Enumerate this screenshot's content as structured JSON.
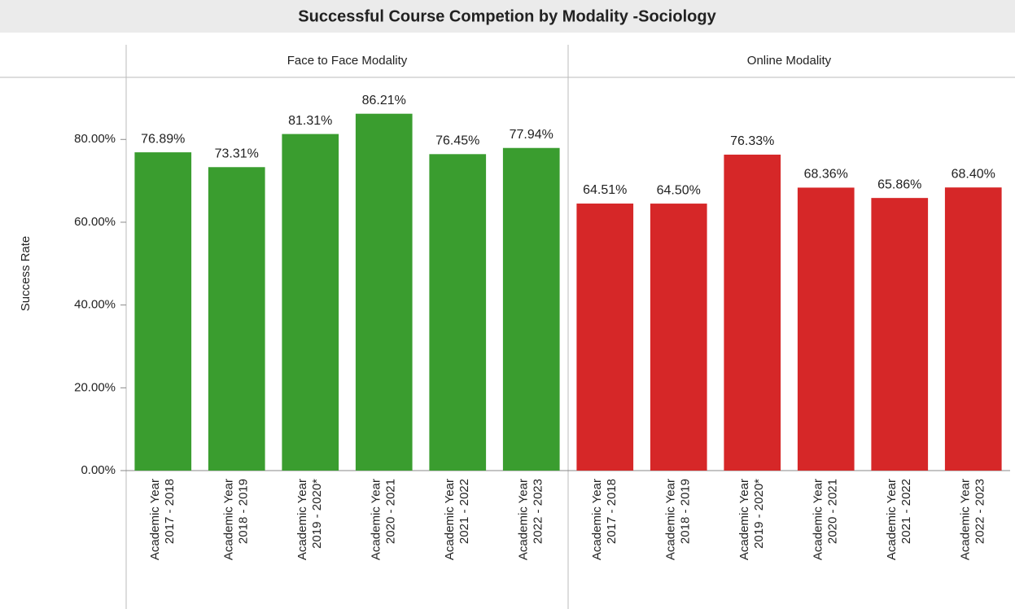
{
  "chart_data": {
    "type": "bar",
    "title": "Successful Course Competion by Modality -Sociology",
    "y_label": "Success Rate",
    "ylim": [
      0,
      95
    ],
    "yticks": [
      {
        "value": 0,
        "label": "0.00%"
      },
      {
        "value": 20,
        "label": "20.00%"
      },
      {
        "value": 40,
        "label": "40.00%"
      },
      {
        "value": 60,
        "label": "60.00%"
      },
      {
        "value": 80,
        "label": "80.00%"
      }
    ],
    "panels": [
      {
        "name": "Face to Face Modality",
        "color": "#3a9d2f",
        "categories": [
          [
            "Academic Year",
            "2017 - 2018"
          ],
          [
            "Academic Year",
            "2018 - 2019"
          ],
          [
            "Academic Year",
            "2019 - 2020*"
          ],
          [
            "Academic Year",
            "2020 - 2021"
          ],
          [
            "Academic Year",
            "2021 - 2022"
          ],
          [
            "Academic Year",
            "2022 - 2023"
          ]
        ],
        "values": [
          76.89,
          73.31,
          81.31,
          86.21,
          76.45,
          77.94
        ],
        "value_labels": [
          "76.89%",
          "73.31%",
          "81.31%",
          "86.21%",
          "76.45%",
          "77.94%"
        ]
      },
      {
        "name": "Online Modality",
        "color": "#d62728",
        "categories": [
          [
            "Academic Year",
            "2017 - 2018"
          ],
          [
            "Academic Year",
            "2018 - 2019"
          ],
          [
            "Academic Year",
            "2019 - 2020*"
          ],
          [
            "Academic Year",
            "2020 - 2021"
          ],
          [
            "Academic Year",
            "2021 - 2022"
          ],
          [
            "Academic Year",
            "2022 - 2023"
          ]
        ],
        "values": [
          64.51,
          64.5,
          76.33,
          68.36,
          65.86,
          68.4
        ],
        "value_labels": [
          "64.51%",
          "64.50%",
          "76.33%",
          "68.36%",
          "65.86%",
          "68.40%"
        ]
      }
    ]
  }
}
